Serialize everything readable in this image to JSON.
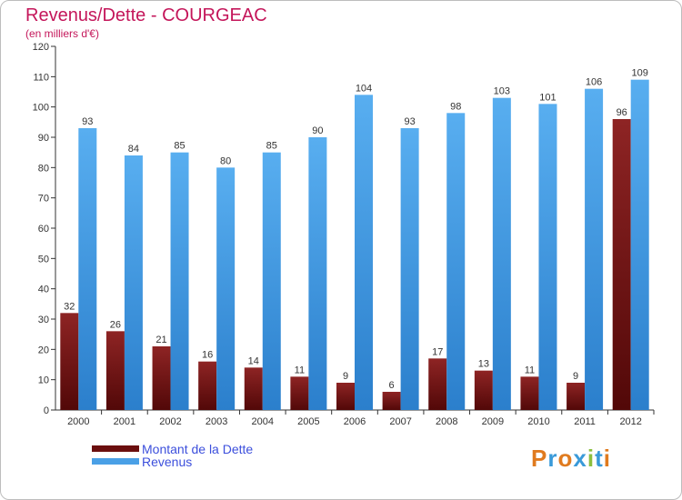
{
  "chart_data": {
    "type": "bar",
    "title": "Revenus/Dette - COURGEAC",
    "subtitle": "(en milliers d'€)",
    "categories": [
      "2000",
      "2001",
      "2002",
      "2003",
      "2004",
      "2005",
      "2006",
      "2007",
      "2008",
      "2009",
      "2010",
      "2011",
      "2012"
    ],
    "series": [
      {
        "name": "Montant de la Dette",
        "color": "#7a1616",
        "values": [
          32,
          26,
          21,
          16,
          14,
          11,
          9,
          6,
          17,
          13,
          11,
          9,
          96
        ]
      },
      {
        "name": "Revenus",
        "color": "#4aa0e6",
        "values": [
          93,
          84,
          85,
          80,
          85,
          90,
          104,
          93,
          98,
          103,
          101,
          106,
          109
        ]
      }
    ],
    "ylim": [
      0,
      120
    ],
    "yticks": [
      0,
      10,
      20,
      30,
      40,
      50,
      60,
      70,
      80,
      90,
      100,
      110,
      120
    ],
    "grid": false,
    "legend": "bottom-left"
  },
  "logo": {
    "text": "Proxiti"
  }
}
